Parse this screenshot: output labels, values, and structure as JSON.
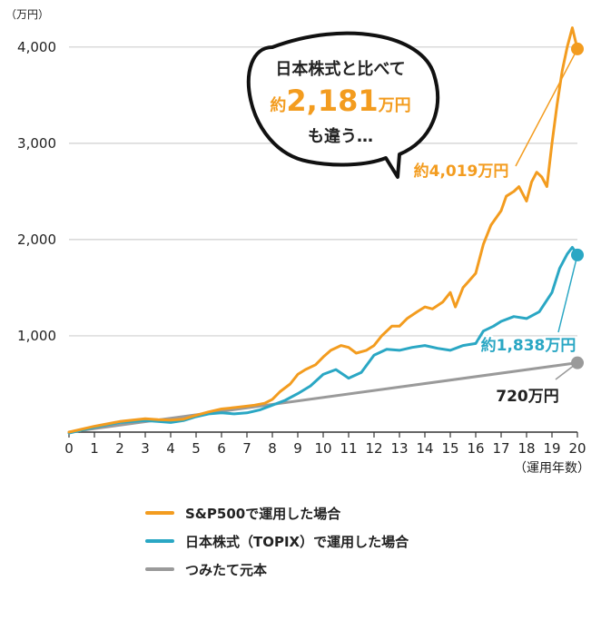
{
  "chart_data": {
    "type": "line",
    "y_unit_label": "（万円）",
    "x_unit_label": "（運用年数）",
    "xlim": [
      0,
      20
    ],
    "ylim": [
      0,
      4300
    ],
    "x_ticks": [
      0,
      1,
      2,
      3,
      4,
      5,
      6,
      7,
      8,
      9,
      10,
      11,
      12,
      13,
      14,
      15,
      16,
      17,
      18,
      19,
      20
    ],
    "y_ticks": [
      1000,
      2000,
      3000,
      4000
    ],
    "y_tick_labels": [
      "1,000",
      "2,000",
      "3,000",
      "4,000"
    ],
    "grid": true,
    "series": [
      {
        "name": "S&P500で運用した場合",
        "color": "#f39c1f",
        "end_label": "約4,019万円",
        "x": [
          0,
          1,
          2,
          3,
          3.5,
          4,
          4.5,
          5,
          5.5,
          6,
          6.5,
          7,
          7.3,
          7.7,
          8,
          8.3,
          8.7,
          9,
          9.3,
          9.7,
          10,
          10.3,
          10.7,
          11,
          11.3,
          11.7,
          12,
          12.3,
          12.7,
          13,
          13.3,
          13.7,
          14,
          14.3,
          14.7,
          15,
          15.2,
          15.5,
          15.7,
          16,
          16.3,
          16.6,
          17,
          17.2,
          17.5,
          17.7,
          18,
          18.2,
          18.4,
          18.6,
          18.8,
          19,
          19.2,
          19.4,
          19.6,
          19.8,
          20
        ],
        "values": [
          0,
          60,
          110,
          140,
          130,
          125,
          135,
          175,
          210,
          240,
          255,
          270,
          280,
          300,
          340,
          420,
          500,
          600,
          650,
          700,
          780,
          850,
          900,
          880,
          820,
          850,
          900,
          1000,
          1100,
          1100,
          1180,
          1250,
          1300,
          1280,
          1350,
          1450,
          1300,
          1500,
          1560,
          1650,
          1950,
          2150,
          2300,
          2450,
          2500,
          2550,
          2400,
          2600,
          2700,
          2650,
          2550,
          3000,
          3400,
          3750,
          4000,
          4200,
          3980
        ]
      },
      {
        "name": "日本株式（TOPIX）で運用した場合",
        "color": "#2aa7c4",
        "end_label": "約1,838万円",
        "x": [
          0,
          1,
          2,
          3,
          3.5,
          4,
          4.5,
          5,
          5.5,
          6,
          6.5,
          7,
          7.5,
          8,
          8.5,
          9,
          9.5,
          10,
          10.5,
          11,
          11.5,
          12,
          12.5,
          13,
          13.5,
          14,
          14.5,
          15,
          15.5,
          16,
          16.3,
          16.7,
          17,
          17.5,
          18,
          18.5,
          19,
          19.3,
          19.6,
          19.8,
          20
        ],
        "values": [
          -10,
          50,
          100,
          120,
          110,
          100,
          120,
          160,
          190,
          200,
          190,
          200,
          230,
          280,
          330,
          400,
          480,
          600,
          650,
          560,
          620,
          800,
          860,
          850,
          880,
          900,
          870,
          850,
          900,
          920,
          1050,
          1100,
          1150,
          1200,
          1180,
          1250,
          1450,
          1700,
          1850,
          1920,
          1840
        ]
      },
      {
        "name": "つみたて元本",
        "color": "#9a9a9a",
        "end_label": "720万円",
        "x": [
          0,
          20
        ],
        "values": [
          0,
          720
        ]
      }
    ],
    "callout": {
      "line1": "日本株式と比べて",
      "prefix": "約",
      "amount": "2,181",
      "suffix": "万円",
      "line3": "も違う…"
    }
  }
}
